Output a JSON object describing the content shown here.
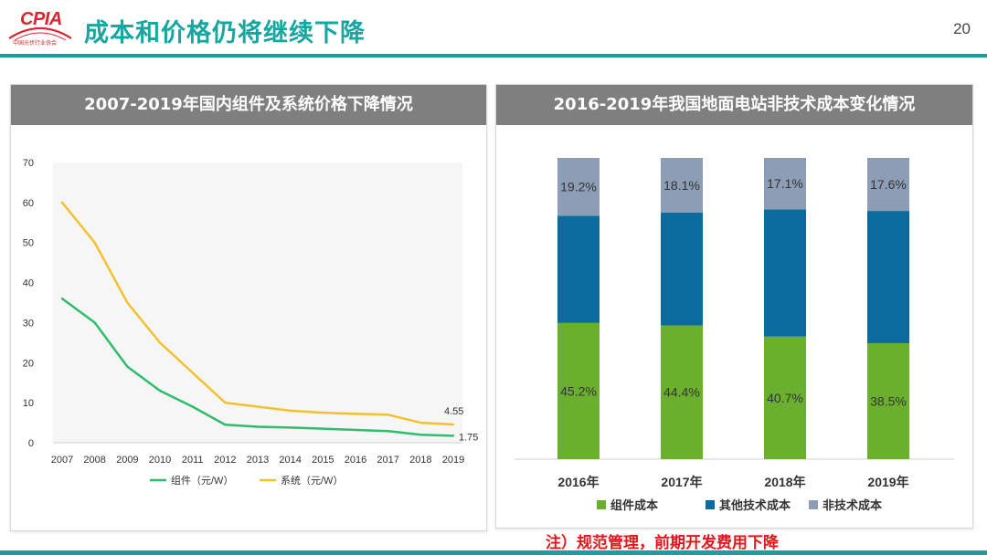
{
  "header": {
    "logo_text": "CPIA",
    "logo_sub": "中国光伏行业协会",
    "title": "成本和价格仍将继续下降",
    "page_number": "20",
    "accent_color": "#1a9fa0",
    "title_color": "#17a6a0"
  },
  "note": "注）规范管理，前期开发费用下降",
  "chart_data": [
    {
      "type": "line",
      "title": "2007-2019年国内组件及系统价格下降情况",
      "x": [
        "2007",
        "2008",
        "2009",
        "2010",
        "2011",
        "2012",
        "2013",
        "2014",
        "2015",
        "2016",
        "2017",
        "2018",
        "2019"
      ],
      "ylim": [
        0,
        70
      ],
      "yticks": [
        0,
        10,
        20,
        30,
        40,
        50,
        60,
        70
      ],
      "grid": false,
      "legend": "bottom",
      "series": [
        {
          "name": "组件（元/W）",
          "color": "#2fbd6b",
          "values": [
            36,
            30,
            19,
            13,
            9,
            4.5,
            4,
            3.8,
            3.5,
            3.2,
            2.9,
            2.0,
            1.75
          ],
          "end_label": "1.75"
        },
        {
          "name": "系统（元/W）",
          "color": "#f2c12e",
          "values": [
            60,
            50,
            35,
            25,
            17.5,
            10,
            9,
            8,
            7.5,
            7.2,
            7,
            5,
            4.55
          ],
          "end_label": "4.55"
        }
      ]
    },
    {
      "type": "bar",
      "stacked": true,
      "title": "2016-2019年我国地面电站非技术成本变化情况",
      "categories": [
        "2016年",
        "2017年",
        "2018年",
        "2019年"
      ],
      "ylim": [
        0,
        100
      ],
      "legend": "bottom",
      "series": [
        {
          "name": "组件成本",
          "color": "#6ab02e",
          "values": [
            45.2,
            44.4,
            40.7,
            38.5
          ],
          "labels": [
            "45.2%",
            "44.4%",
            "40.7%",
            "38.5%"
          ]
        },
        {
          "name": "其他技术成本",
          "color": "#0b6a9e",
          "values": [
            35.6,
            37.5,
            42.2,
            43.9
          ],
          "labels": [
            "",
            "",
            "",
            ""
          ]
        },
        {
          "name": "非技术成本",
          "color": "#8c9db5",
          "values": [
            19.2,
            18.1,
            17.1,
            17.6
          ],
          "labels": [
            "19.2%",
            "18.1%",
            "17.1%",
            "17.6%"
          ]
        }
      ]
    }
  ]
}
